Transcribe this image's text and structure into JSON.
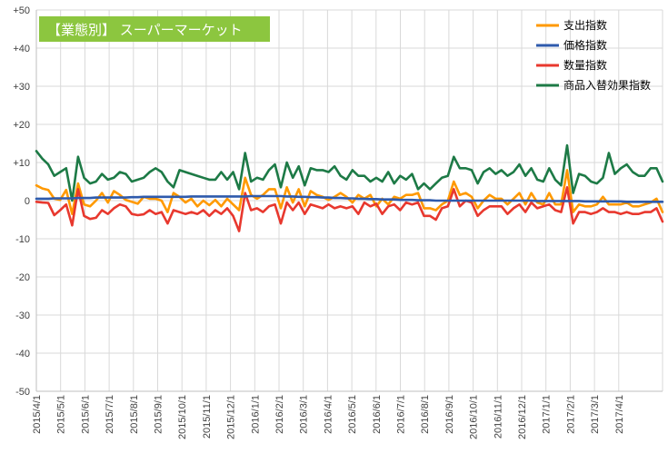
{
  "chart_data": {
    "type": "line",
    "title": "【業態別】 スーパーマーケット",
    "xlabel": "",
    "ylabel": "",
    "ylim": [
      -50,
      50
    ],
    "y_ticks": [
      "+50",
      "+40",
      "+30",
      "+20",
      "+10",
      "0",
      "-10",
      "-20",
      "-30",
      "-40",
      "-50"
    ],
    "y_tick_values": [
      50,
      40,
      30,
      20,
      10,
      0,
      -10,
      -20,
      -30,
      -40,
      -50
    ],
    "x_tick_labels": [
      "2015/4/1",
      "2015/5/1",
      "2015/6/1",
      "2015/7/1",
      "2015/8/1",
      "2015/9/1",
      "2015/10/1",
      "2015/11/1",
      "2015/12/1",
      "2016/1/1",
      "2016/2/1",
      "2016/3/1",
      "2016/4/1",
      "2016/5/1",
      "2016/6/1",
      "2016/7/1",
      "2016/8/1",
      "2016/9/1",
      "2016/10/1",
      "2016/11/1",
      "2016/12/1",
      "2017/1/1",
      "2017/2/1",
      "2017/3/1",
      "2017/4/1"
    ],
    "x_start": "2015/4/1",
    "x_interval": "weekly",
    "grid": true,
    "legend_position": "top-right",
    "series": [
      {
        "name": "支出指数",
        "color": "#FF9900",
        "values": [
          4,
          3.2,
          2.8,
          0.5,
          0.2,
          2.8,
          -3.5,
          4.5,
          -1,
          -1.5,
          0,
          2,
          -0.5,
          2.5,
          1.5,
          0.2,
          -0.3,
          -0.8,
          1,
          0.5,
          0.5,
          0,
          -3,
          2,
          1,
          -0.5,
          0.5,
          -1.5,
          0,
          -1.2,
          0.2,
          -1.5,
          0.5,
          -1,
          -2.5,
          6,
          1.5,
          0.5,
          1.5,
          3,
          3,
          -2,
          3.5,
          -0.5,
          3,
          -1.5,
          2.5,
          1.5,
          1,
          0.2,
          1,
          2,
          1,
          -0.5,
          1.5,
          0.5,
          1.5,
          -1.5,
          0.5,
          -1,
          1,
          0.5,
          1.5,
          1.5,
          2,
          -2,
          -2,
          -2.5,
          -1,
          0,
          5,
          1.5,
          2,
          1,
          -2,
          0,
          1.5,
          0.5,
          0.5,
          -1,
          0.5,
          2,
          -1,
          2,
          -0.5,
          -1,
          2,
          -1,
          -1,
          8,
          -3,
          -1,
          -1.5,
          -1.5,
          -1,
          1,
          -1,
          -1,
          -1,
          -0.5,
          -1.5,
          -1.5,
          -1,
          -0.5,
          0.5,
          -3
        ]
      },
      {
        "name": "価格指数",
        "color": "#2E5AAC",
        "values": [
          0.5,
          0.5,
          0.5,
          0.6,
          0.6,
          0.6,
          0.6,
          0.7,
          0.7,
          0.7,
          0.8,
          0.8,
          0.8,
          0.8,
          0.8,
          0.8,
          0.9,
          0.9,
          1,
          1,
          1,
          1,
          1,
          1,
          1,
          1,
          1.1,
          1.1,
          1.1,
          1.1,
          1.1,
          1.1,
          1.1,
          1.1,
          1.1,
          1.1,
          1.2,
          1.2,
          1.2,
          1.2,
          1.2,
          1.2,
          1.1,
          1.1,
          1,
          1,
          0.9,
          0.9,
          0.8,
          0.8,
          0.7,
          0.7,
          0.6,
          0.6,
          0.5,
          0.5,
          0.4,
          0.4,
          0.3,
          0.3,
          0.3,
          0.2,
          0.2,
          0.2,
          0.1,
          0.1,
          0.1,
          0,
          0,
          0,
          0,
          0,
          0,
          0,
          0,
          0,
          0,
          0,
          0,
          0,
          0,
          0,
          0,
          0,
          -0.1,
          -0.1,
          -0.1,
          -0.1,
          -0.1,
          -0.1,
          -0.1,
          -0.1,
          -0.2,
          -0.2,
          -0.2,
          -0.2,
          -0.2,
          -0.2,
          -0.2,
          -0.3,
          -0.3,
          -0.3,
          -0.3,
          -0.3,
          -0.3,
          -0.3
        ]
      },
      {
        "name": "数量指数",
        "color": "#E8382E",
        "values": [
          -0.3,
          -0.5,
          -0.6,
          -3.8,
          -2.5,
          -1,
          -6.5,
          3,
          -4,
          -4.8,
          -4.5,
          -2.5,
          -3.5,
          -2,
          -1,
          -1.5,
          -3.5,
          -3.8,
          -3.6,
          -2.5,
          -3.5,
          -3,
          -6,
          -2.5,
          -3,
          -3.5,
          -3,
          -3.5,
          -2.5,
          -4,
          -2.5,
          -3.5,
          -2,
          -4,
          -8,
          2,
          -2.5,
          -2,
          -3,
          -1.5,
          -1,
          -6,
          -0.5,
          -2.5,
          -0.5,
          -3.5,
          -1,
          -1.5,
          -2,
          -1,
          -2,
          -1.5,
          -2,
          -1.5,
          -3.5,
          -0.5,
          -1.5,
          -0.8,
          -3.5,
          -1.5,
          -1,
          -2.5,
          -0.5,
          -1,
          -0.5,
          -4,
          -4,
          -5,
          -2,
          -1.5,
          3,
          -1.5,
          0,
          -0.5,
          -4,
          -2.5,
          -1.5,
          -1.5,
          -1.5,
          -3.5,
          -2,
          -1,
          -3,
          -0.5,
          -2,
          -1.5,
          -1,
          -2.5,
          -3,
          3.5,
          -6,
          -3,
          -3,
          -3.5,
          -3,
          -2,
          -3,
          -3,
          -3.5,
          -3,
          -3.5,
          -3.5,
          -3,
          -3,
          -2,
          -5.5
        ]
      },
      {
        "name": "商品入替効果指数",
        "color": "#1D7A46",
        "values": [
          13,
          11,
          9.5,
          6.5,
          7.5,
          8.5,
          0,
          11.5,
          6,
          4.5,
          5,
          7,
          5.5,
          6,
          7.5,
          7,
          5,
          5.5,
          6,
          7.5,
          8.5,
          7.5,
          5,
          3.5,
          8,
          7.5,
          7,
          6.5,
          6,
          5.5,
          5.5,
          7.5,
          5.5,
          7.5,
          3,
          12.5,
          5,
          6,
          5.5,
          8,
          9.5,
          3.5,
          10,
          6,
          9,
          4,
          8.5,
          8,
          8,
          7.5,
          9,
          6.5,
          5.5,
          8,
          6.5,
          6.5,
          5,
          6,
          5,
          7.5,
          4.5,
          6.5,
          5.5,
          7,
          3,
          4.5,
          3,
          4.5,
          6,
          6.5,
          11.5,
          8.5,
          8.5,
          8,
          4.5,
          7.5,
          8.5,
          7,
          8,
          6.5,
          7.5,
          9.5,
          6.5,
          8.5,
          5.5,
          5,
          8.5,
          5.5,
          4,
          14.5,
          2,
          7,
          6.5,
          5,
          4.5,
          6,
          12.5,
          7,
          8.5,
          9.5,
          7.5,
          6.5,
          6.5,
          8.5,
          8.5,
          5
        ]
      }
    ]
  }
}
